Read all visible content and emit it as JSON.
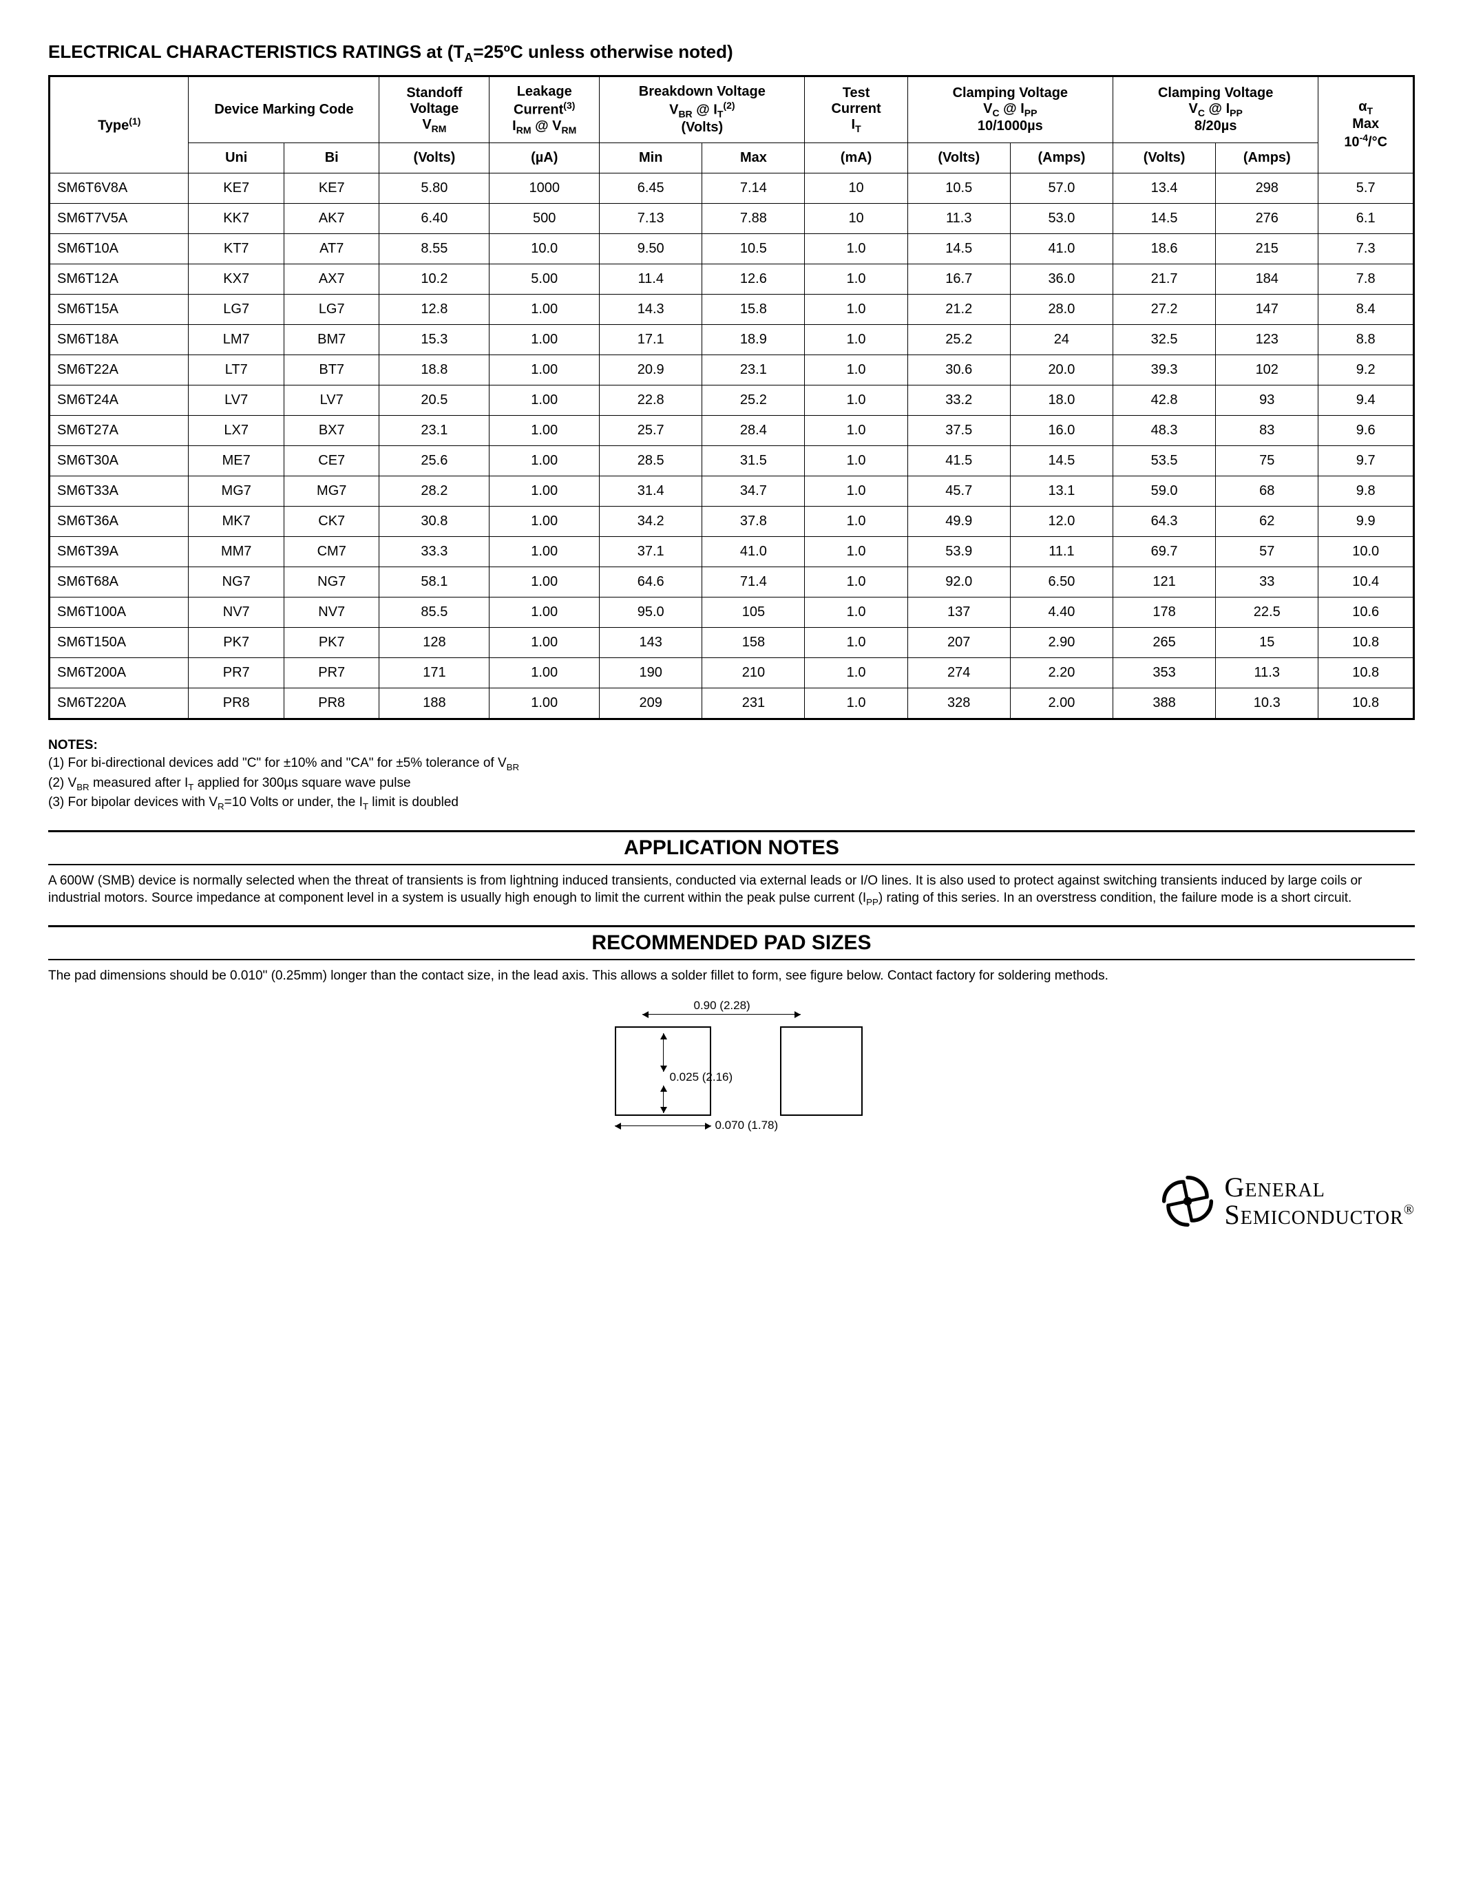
{
  "title_html": "ELECTRICAL CHARACTERISTICS RATINGS at (T<span class='sub'>A</span>=25ºC unless otherwise noted)",
  "headers": {
    "type": "Type<span class='sup'>(1)</span>",
    "marking": "Device Marking Code",
    "standoff": "Standoff<br>Voltage<br>V<span class='sub'>RM</span>",
    "leakage": "Leakage<br>Current<span class='sup'>(3)</span><br>I<span class='sub'>RM</span> @ V<span class='sub'>RM</span>",
    "breakdown": "Breakdown Voltage<br>V<span class='sub'>BR</span> @ I<span class='sub'>T</span><span class='sup'>(2)</span><br>(Volts)",
    "test": "Test<br>Current<br>I<span class='sub'>T</span>",
    "clamp1": "Clamping Voltage<br>V<span class='sub'>C</span> @ I<span class='sub'>PP</span><br>10/1000µs",
    "clamp2": "Clamping Voltage<br>V<span class='sub'>C</span> @ I<span class='sub'>PP</span><br>8/20µs",
    "alpha": "α<span class='sub'>T</span><br>Max<br>10<span class='sup'>-4</span>/°C"
  },
  "units": {
    "uni": "Uni",
    "bi": "Bi",
    "volts": "(Volts)",
    "ua": "(µA)",
    "min": "Min",
    "max": "Max",
    "ma": "(mA)",
    "amps": "(Amps)"
  },
  "col_widths": [
    "9.5%",
    "6.5%",
    "6.5%",
    "7.5%",
    "7.5%",
    "7%",
    "7%",
    "7%",
    "7%",
    "7%",
    "7%",
    "7%",
    "6.5%"
  ],
  "rows": [
    [
      "SM6T6V8A",
      "KE7",
      "KE7",
      "5.80",
      "1000",
      "6.45",
      "7.14",
      "10",
      "10.5",
      "57.0",
      "13.4",
      "298",
      "5.7"
    ],
    [
      "SM6T7V5A",
      "KK7",
      "AK7",
      "6.40",
      "500",
      "7.13",
      "7.88",
      "10",
      "11.3",
      "53.0",
      "14.5",
      "276",
      "6.1"
    ],
    [
      "SM6T10A",
      "KT7",
      "AT7",
      "8.55",
      "10.0",
      "9.50",
      "10.5",
      "1.0",
      "14.5",
      "41.0",
      "18.6",
      "215",
      "7.3"
    ],
    [
      "SM6T12A",
      "KX7",
      "AX7",
      "10.2",
      "5.00",
      "11.4",
      "12.6",
      "1.0",
      "16.7",
      "36.0",
      "21.7",
      "184",
      "7.8"
    ],
    [
      "SM6T15A",
      "LG7",
      "LG7",
      "12.8",
      "1.00",
      "14.3",
      "15.8",
      "1.0",
      "21.2",
      "28.0",
      "27.2",
      "147",
      "8.4"
    ],
    [
      "SM6T18A",
      "LM7",
      "BM7",
      "15.3",
      "1.00",
      "17.1",
      "18.9",
      "1.0",
      "25.2",
      "24",
      "32.5",
      "123",
      "8.8"
    ],
    [
      "SM6T22A",
      "LT7",
      "BT7",
      "18.8",
      "1.00",
      "20.9",
      "23.1",
      "1.0",
      "30.6",
      "20.0",
      "39.3",
      "102",
      "9.2"
    ],
    [
      "SM6T24A",
      "LV7",
      "LV7",
      "20.5",
      "1.00",
      "22.8",
      "25.2",
      "1.0",
      "33.2",
      "18.0",
      "42.8",
      "93",
      "9.4"
    ],
    [
      "SM6T27A",
      "LX7",
      "BX7",
      "23.1",
      "1.00",
      "25.7",
      "28.4",
      "1.0",
      "37.5",
      "16.0",
      "48.3",
      "83",
      "9.6"
    ],
    [
      "SM6T30A",
      "ME7",
      "CE7",
      "25.6",
      "1.00",
      "28.5",
      "31.5",
      "1.0",
      "41.5",
      "14.5",
      "53.5",
      "75",
      "9.7"
    ],
    [
      "SM6T33A",
      "MG7",
      "MG7",
      "28.2",
      "1.00",
      "31.4",
      "34.7",
      "1.0",
      "45.7",
      "13.1",
      "59.0",
      "68",
      "9.8"
    ],
    [
      "SM6T36A",
      "MK7",
      "CK7",
      "30.8",
      "1.00",
      "34.2",
      "37.8",
      "1.0",
      "49.9",
      "12.0",
      "64.3",
      "62",
      "9.9"
    ],
    [
      "SM6T39A",
      "MM7",
      "CM7",
      "33.3",
      "1.00",
      "37.1",
      "41.0",
      "1.0",
      "53.9",
      "11.1",
      "69.7",
      "57",
      "10.0"
    ],
    [
      "SM6T68A",
      "NG7",
      "NG7",
      "58.1",
      "1.00",
      "64.6",
      "71.4",
      "1.0",
      "92.0",
      "6.50",
      "121",
      "33",
      "10.4"
    ],
    [
      "SM6T100A",
      "NV7",
      "NV7",
      "85.5",
      "1.00",
      "95.0",
      "105",
      "1.0",
      "137",
      "4.40",
      "178",
      "22.5",
      "10.6"
    ],
    [
      "SM6T150A",
      "PK7",
      "PK7",
      "128",
      "1.00",
      "143",
      "158",
      "1.0",
      "207",
      "2.90",
      "265",
      "15",
      "10.8"
    ],
    [
      "SM6T200A",
      "PR7",
      "PR7",
      "171",
      "1.00",
      "190",
      "210",
      "1.0",
      "274",
      "2.20",
      "353",
      "11.3",
      "10.8"
    ],
    [
      "SM6T220A",
      "PR8",
      "PR8",
      "188",
      "1.00",
      "209",
      "231",
      "1.0",
      "328",
      "2.00",
      "388",
      "10.3",
      "10.8"
    ]
  ],
  "notes": {
    "title": "NOTES:",
    "items_html": [
      "(1) For bi-directional devices add \"C\" for ±10% and \"CA\" for ±5% tolerance of V<span class='sub'>BR</span>",
      "(2) V<span class='sub'>BR</span> measured after I<span class='sub'>T</span> applied for 300µs square wave pulse",
      "(3) For bipolar devices with V<span class='sub'>R</span>=10 Volts or under, the I<span class='sub'>T</span> limit is doubled"
    ]
  },
  "app_notes": {
    "title": "APPLICATION NOTES",
    "body_html": "A 600W (SMB) device is normally selected when the threat of transients is from lightning induced transients, conducted via external leads or I/O lines. It is also used to protect against switching transients induced by large coils or industrial motors. Source impedance at component level in a system is usually high enough to limit the current within the peak pulse current (I<span class='sub'>PP</span>) rating of this series. In an overstress condition, the failure mode is a short circuit."
  },
  "pad_sizes": {
    "title": "RECOMMENDED PAD SIZES",
    "body": "The pad dimensions should be 0.010\" (0.25mm) longer than the contact size, in the lead axis. This allows a solder fillet to form, see figure below. Contact factory for soldering methods.",
    "dim_top": "0.90 (2.28)",
    "dim_mid": "0.025 (2.16)",
    "dim_bot": "0.070 (1.78)"
  },
  "brand": {
    "line1": "General",
    "line2": "Semiconductor"
  }
}
